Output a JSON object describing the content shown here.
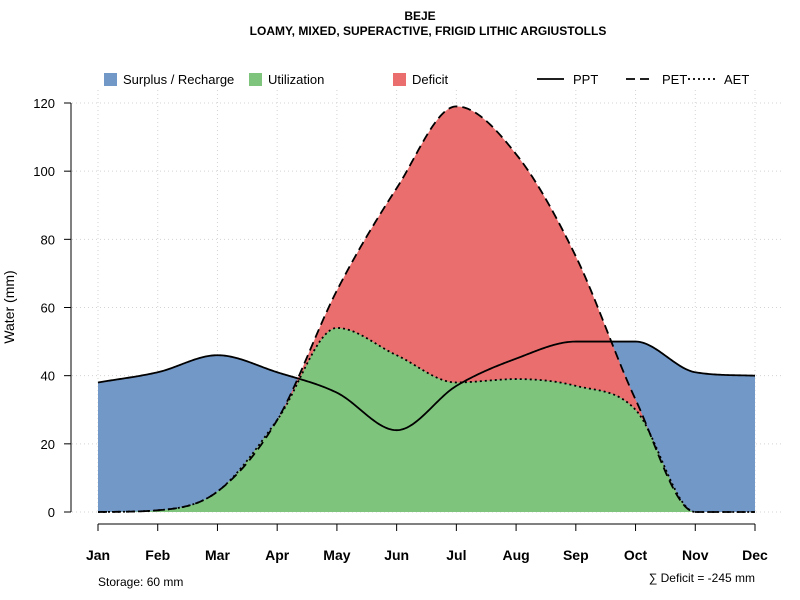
{
  "chart_data": {
    "type": "area",
    "title": "BEJE",
    "subtitle": "LOAMY, MIXED, SUPERACTIVE, FRIGID LITHIC ARGIUSTOLLS",
    "ylabel": "Water (mm)",
    "xlabel": "",
    "ylim": [
      0,
      120
    ],
    "yticks": [
      0,
      20,
      40,
      60,
      80,
      100,
      120
    ],
    "grid": true,
    "categories": [
      "Jan",
      "Feb",
      "Mar",
      "Apr",
      "May",
      "Jun",
      "Jul",
      "Aug",
      "Sep",
      "Oct",
      "Nov",
      "Dec"
    ],
    "series": [
      {
        "name": "PPT",
        "line_style": "solid",
        "values": [
          38,
          41,
          46,
          41,
          35,
          24,
          37,
          45,
          50,
          50,
          41,
          40
        ]
      },
      {
        "name": "PET",
        "line_style": "dashed",
        "values": [
          0,
          0.5,
          6,
          27,
          65,
          95,
          119,
          105,
          75,
          33,
          0,
          0
        ]
      },
      {
        "name": "AET",
        "line_style": "dotted",
        "values": [
          0,
          0.5,
          6,
          27,
          54,
          46,
          38,
          39,
          37,
          30,
          0,
          0
        ]
      }
    ],
    "legend": {
      "position": "top",
      "areas": [
        {
          "label": "Surplus / Recharge",
          "color": "#7298c8"
        },
        {
          "label": "Utilization",
          "color": "#7fc47d"
        },
        {
          "label": "Deficit",
          "color": "#eb6e6e"
        }
      ],
      "lines": [
        {
          "label": "PPT",
          "style": "solid"
        },
        {
          "label": "PET",
          "style": "dashed"
        },
        {
          "label": "AET",
          "style": "dotted"
        }
      ]
    },
    "annotations": {
      "storage": "Storage: 60 mm",
      "deficit": "∑ Deficit = -245 mm"
    }
  }
}
